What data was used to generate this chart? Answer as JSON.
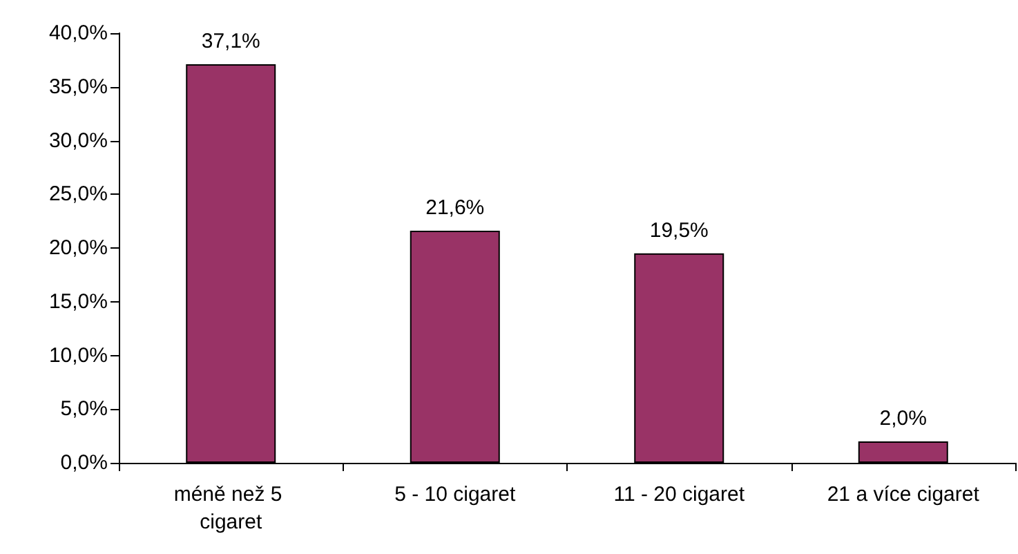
{
  "chart_data": {
    "type": "bar",
    "categories": [
      "méně než 5 cigaret",
      "5 - 10 cigaret",
      "11 - 20 cigaret",
      "21 a více cigaret"
    ],
    "values": [
      37.1,
      21.6,
      19.5,
      2.0
    ],
    "value_labels": [
      "37,1%",
      "21,6%",
      "19,5%",
      "2,0%"
    ],
    "color": "#993366",
    "ylim": [
      0,
      40
    ],
    "yticks": [
      {
        "value": 0,
        "label": "0,0%"
      },
      {
        "value": 5,
        "label": "5,0%"
      },
      {
        "value": 10,
        "label": "10,0%"
      },
      {
        "value": 15,
        "label": "15,0%"
      },
      {
        "value": 20,
        "label": "20,0%"
      },
      {
        "value": 25,
        "label": "25,0%"
      },
      {
        "value": 30,
        "label": "30,0%"
      },
      {
        "value": 35,
        "label": "35,0%"
      },
      {
        "value": 40,
        "label": "40,0%"
      }
    ]
  }
}
